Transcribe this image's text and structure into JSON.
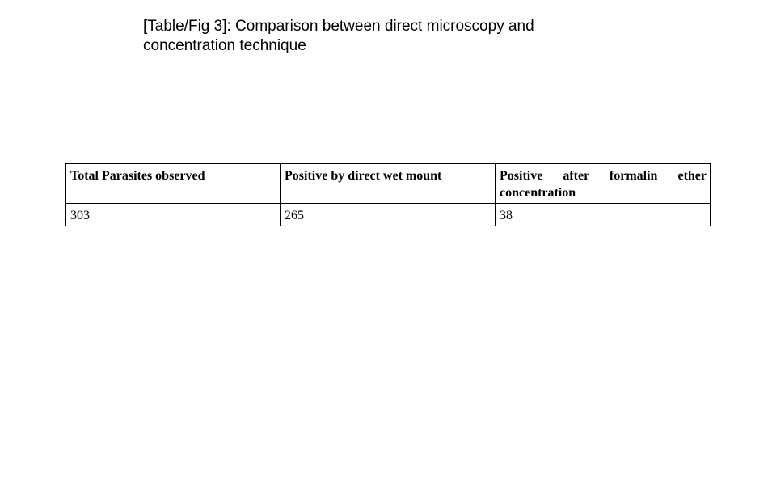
{
  "caption": "[Table/Fig 3]: Comparison between direct microscopy and concentration technique",
  "table": {
    "headers": [
      "Total Parasites observed",
      "Positive by direct wet mount",
      "Positive after formalin ether concentration"
    ],
    "rows": [
      [
        "303",
        "265",
        "38"
      ]
    ]
  }
}
